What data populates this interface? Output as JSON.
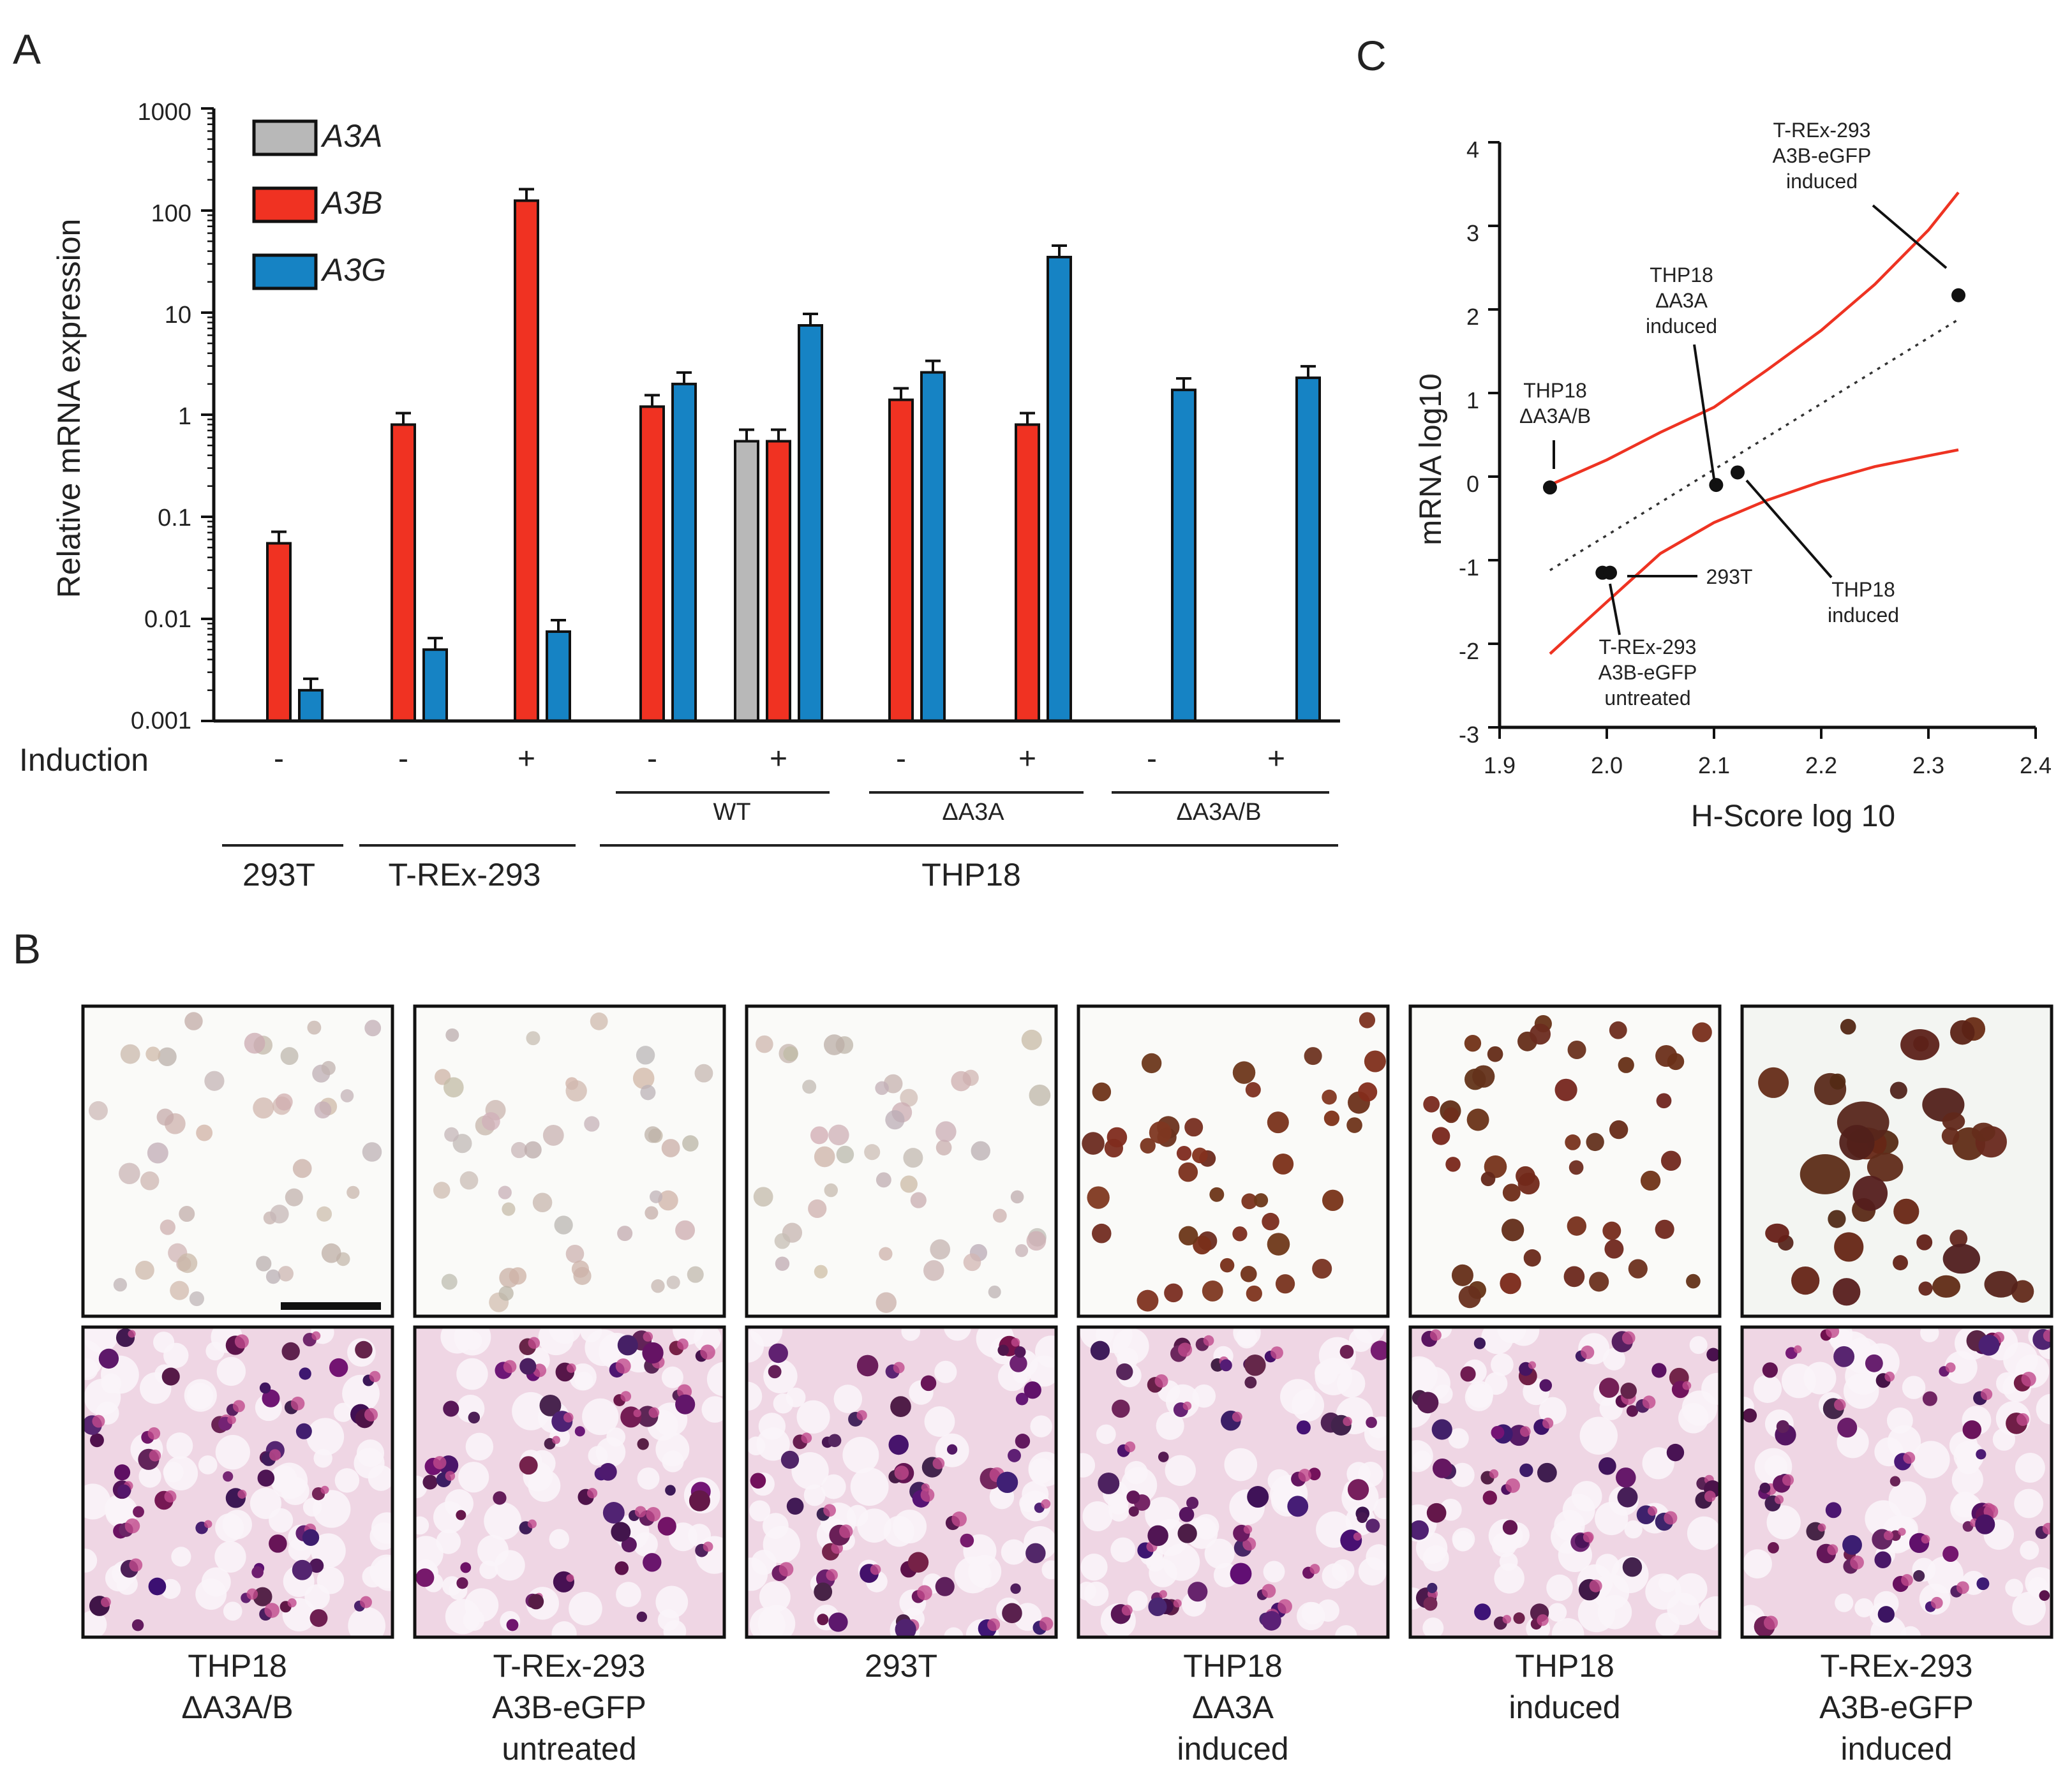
{
  "panel_labels": {
    "a": "A",
    "b": "B",
    "c": "C"
  },
  "colors": {
    "A3A": "#b8b8b8",
    "A3B": "#f03222",
    "A3G": "#1683c4",
    "fit": "#ee3322"
  },
  "chart_data": [
    {
      "id": "panel_a",
      "type": "bar",
      "scale": "log",
      "title": "",
      "ylabel": "Relative mRNA expression",
      "ylim": [
        0.001,
        1000
      ],
      "yticks": [
        "1000",
        "100",
        "10",
        "1",
        "0.1",
        "0.01",
        "0.001"
      ],
      "induction_label": "Induction",
      "induction": [
        "-",
        "-",
        "+",
        "-",
        "+",
        "-",
        "+",
        "-",
        "+"
      ],
      "series_names": [
        "A3A",
        "A3B",
        "A3G"
      ],
      "groups": [
        {
          "name": "293T",
          "A3A": null,
          "A3B": 0.055,
          "A3G": 0.002
        },
        {
          "name": "T-REx-293 -",
          "A3A": null,
          "A3B": 0.8,
          "A3G": 0.005
        },
        {
          "name": "T-REx-293 +",
          "A3A": null,
          "A3B": 125,
          "A3G": 0.0075
        },
        {
          "name": "THP18 WT -",
          "A3A": null,
          "A3B": 1.2,
          "A3G": 2.0
        },
        {
          "name": "THP18 WT +",
          "A3A": 0.55,
          "A3B": 0.55,
          "A3G": 7.5
        },
        {
          "name": "THP18 ΔA3A -",
          "A3A": null,
          "A3B": 1.4,
          "A3G": 2.6
        },
        {
          "name": "THP18 ΔA3A +",
          "A3A": null,
          "A3B": 0.8,
          "A3G": 35
        },
        {
          "name": "THP18 ΔA3A/B -",
          "A3A": null,
          "A3B": null,
          "A3G": 1.75
        },
        {
          "name": "THP18 ΔA3A/B +",
          "A3A": null,
          "A3B": null,
          "A3G": 2.3
        }
      ],
      "subgroups": [
        "WT",
        "ΔA3A",
        "ΔA3A/B"
      ],
      "cell_lines": [
        "293T",
        "T-REx-293",
        "THP18"
      ]
    },
    {
      "id": "panel_c",
      "type": "scatter",
      "xlabel": "H-Score log 10",
      "ylabel": "mRNA log10",
      "xlim": [
        1.9,
        2.4
      ],
      "ylim": [
        -3,
        4
      ],
      "xticks": [
        "1.9",
        "2.0",
        "2.1",
        "2.2",
        "2.3",
        "2.4"
      ],
      "yticks": [
        "4",
        "3",
        "2",
        "1",
        "0",
        "-1",
        "-2",
        "-3"
      ],
      "points": [
        {
          "x": 1.947,
          "y": -0.13
        },
        {
          "x": 1.996,
          "y": -1.15
        },
        {
          "x": 2.003,
          "y": -1.15
        },
        {
          "x": 2.102,
          "y": -0.1
        },
        {
          "x": 2.122,
          "y": 0.05
        },
        {
          "x": 2.328,
          "y": 2.17
        }
      ],
      "regression": {
        "x": [
          1.947,
          2.328
        ],
        "y": [
          -1.12,
          1.88
        ]
      },
      "ci_upper": [
        [
          1.947,
          -0.1
        ],
        [
          2.0,
          0.2
        ],
        [
          2.05,
          0.53
        ],
        [
          2.1,
          0.83
        ],
        [
          2.15,
          1.28
        ],
        [
          2.2,
          1.75
        ],
        [
          2.25,
          2.3
        ],
        [
          2.3,
          2.95
        ],
        [
          2.328,
          3.4
        ]
      ],
      "ci_lower": [
        [
          1.947,
          -2.12
        ],
        [
          2.0,
          -1.5
        ],
        [
          2.05,
          -0.92
        ],
        [
          2.1,
          -0.55
        ],
        [
          2.15,
          -0.28
        ],
        [
          2.2,
          -0.06
        ],
        [
          2.25,
          0.12
        ],
        [
          2.3,
          0.25
        ],
        [
          2.328,
          0.32
        ]
      ],
      "annotations": [
        {
          "lines": [
            "T-REx-293",
            "A3B-eGFP",
            "induced"
          ]
        },
        {
          "lines": [
            "THP18",
            "ΔA3A",
            "induced"
          ]
        },
        {
          "lines": [
            "THP18",
            "ΔA3A/B"
          ]
        },
        {
          "lines": [
            "293T"
          ]
        },
        {
          "lines": [
            "THP18",
            "induced"
          ]
        },
        {
          "lines": [
            "T-REx-293",
            "A3B-eGFP",
            "untreated"
          ]
        }
      ]
    }
  ],
  "panel_b": {
    "scale_bar": true,
    "captions": [
      [
        "THP18",
        "ΔA3A/B"
      ],
      [
        "T-REx-293",
        "A3B-eGFP",
        "untreated"
      ],
      [
        "293T"
      ],
      [
        "THP18",
        "ΔA3A",
        "induced"
      ],
      [
        "THP18",
        "induced"
      ],
      [
        "T-REx-293",
        "A3B-eGFP",
        "induced"
      ]
    ],
    "stain_level": [
      0.05,
      0.12,
      0.18,
      0.6,
      0.75,
      1.0
    ]
  }
}
